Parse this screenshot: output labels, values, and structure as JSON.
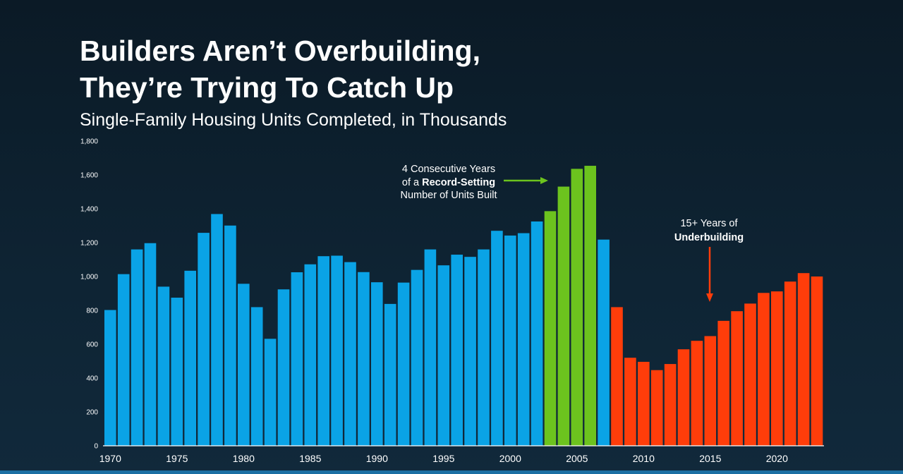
{
  "header": {
    "title_line1": "Builders Aren’t Overbuilding,",
    "title_line2": "They’re Trying To Catch Up",
    "subtitle": "Single-Family Housing Units Completed, in Thousands"
  },
  "chart_data": {
    "type": "bar",
    "title": "Builders Aren’t Overbuilding, They’re Trying To Catch Up",
    "subtitle": "Single-Family Housing Units Completed, in Thousands",
    "xlabel": "",
    "ylabel": "",
    "ylim": [
      0,
      1800
    ],
    "yticks": [
      0,
      200,
      400,
      600,
      800,
      1000,
      1200,
      1400,
      1600,
      1800
    ],
    "ytick_labels": [
      "0",
      "200",
      "400",
      "600",
      "800",
      "1,000",
      "1,200",
      "1,400",
      "1,600",
      "1,800"
    ],
    "xtick_labels": [
      "1970",
      "1975",
      "1980",
      "1985",
      "1990",
      "1995",
      "2000",
      "2005",
      "2010",
      "2015",
      "2020"
    ],
    "grid": false,
    "legend": "none",
    "categories": [
      1970,
      1971,
      1972,
      1973,
      1974,
      1975,
      1976,
      1977,
      1978,
      1979,
      1980,
      1981,
      1982,
      1983,
      1984,
      1985,
      1986,
      1987,
      1988,
      1989,
      1990,
      1991,
      1992,
      1993,
      1994,
      1995,
      1996,
      1997,
      1998,
      1999,
      2000,
      2001,
      2002,
      2003,
      2004,
      2005,
      2006,
      2007,
      2008,
      2009,
      2010,
      2011,
      2012,
      2013,
      2014,
      2015,
      2016,
      2017,
      2018,
      2019,
      2020,
      2021,
      2022,
      2023
    ],
    "values": [
      802,
      1014,
      1160,
      1197,
      940,
      875,
      1034,
      1258,
      1369,
      1301,
      957,
      819,
      632,
      924,
      1025,
      1072,
      1120,
      1123,
      1085,
      1026,
      966,
      838,
      964,
      1039,
      1160,
      1066,
      1129,
      1116,
      1160,
      1270,
      1242,
      1256,
      1325,
      1386,
      1531,
      1636,
      1654,
      1218,
      819,
      520,
      496,
      447,
      483,
      570,
      620,
      648,
      738,
      795,
      840,
      903,
      912,
      970,
      1020,
      1000
    ],
    "colors": {
      "normal": "#0aa3e6",
      "record": "#6cc31e",
      "underbuilding": "#ff3d0a",
      "record_arrow": "#6cc31e",
      "under_arrow": "#ff3d0a"
    },
    "segments": {
      "record_years": [
        2003,
        2006
      ],
      "underbuilding_years": [
        2008,
        2023
      ]
    },
    "annotations": {
      "record": {
        "line1": "4 Consecutive Years",
        "line2_prefix": "of a ",
        "line2_bold": "Record-Setting",
        "line3": "Number of Units Built"
      },
      "underbuilding": {
        "line1": "15+ Years of",
        "line2_bold": "Underbuilding"
      }
    }
  }
}
